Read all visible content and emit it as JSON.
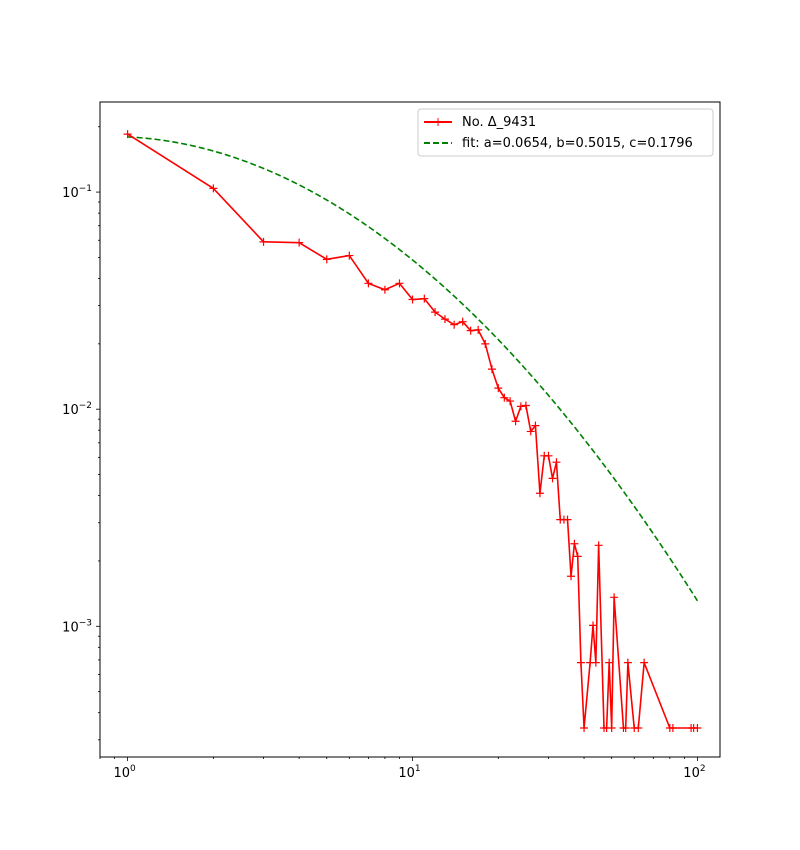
{
  "chart_data": {
    "type": "line",
    "xscale": "log",
    "yscale": "log",
    "xlim": [
      0.8,
      120
    ],
    "ylim": [
      0.00025,
      0.26
    ],
    "grid": false,
    "legend_position": "upper-right",
    "x_ticks": [
      {
        "value": 1,
        "base": "10",
        "exp": "0"
      },
      {
        "value": 10,
        "base": "10",
        "exp": "1"
      },
      {
        "value": 100,
        "base": "10",
        "exp": "2"
      }
    ],
    "y_ticks": [
      {
        "value": 0.001,
        "base": "10",
        "exp": "−3"
      },
      {
        "value": 0.01,
        "base": "10",
        "exp": "−2"
      },
      {
        "value": 0.1,
        "base": "10",
        "exp": "−1"
      }
    ],
    "series": [
      {
        "name": "No. Δ_9431",
        "color": "#ff0000",
        "style": "solid",
        "marker": "plus",
        "x": [
          1,
          2,
          3,
          4,
          5,
          6,
          7,
          8,
          9,
          10,
          11,
          12,
          13,
          14,
          15,
          16,
          17,
          18,
          19,
          20,
          21,
          22,
          23,
          24,
          25,
          26,
          27,
          28,
          29,
          30,
          31,
          32,
          33,
          34,
          35,
          36,
          37,
          38,
          39,
          40,
          42,
          43,
          44,
          45,
          47,
          48,
          49,
          50,
          51,
          55,
          56,
          57,
          60,
          62,
          65,
          80,
          82,
          95,
          97,
          100
        ],
        "y": [
          0.185,
          0.104,
          0.059,
          0.0585,
          0.049,
          0.051,
          0.038,
          0.0355,
          0.038,
          0.032,
          0.0323,
          0.028,
          0.026,
          0.0245,
          0.0253,
          0.023,
          0.0232,
          0.02,
          0.0153,
          0.0125,
          0.0113,
          0.0109,
          0.0088,
          0.0103,
          0.0104,
          0.0079,
          0.0084,
          0.0041,
          0.0061,
          0.0061,
          0.0048,
          0.0057,
          0.0031,
          0.0031,
          0.0031,
          0.0017,
          0.0024,
          0.0021,
          0.00068,
          0.00034,
          0.00068,
          0.00101,
          0.00068,
          0.00236,
          0.00034,
          0.00034,
          0.00068,
          0.00034,
          0.00136,
          0.00034,
          0.00034,
          0.00068,
          0.00034,
          0.00034,
          0.00068,
          0.00034,
          0.00034,
          0.00034,
          0.00034,
          0.00034
        ]
      },
      {
        "name": "fit: a=0.0654, b=0.5015, c=0.1796",
        "color": "#008000",
        "style": "dashed",
        "marker": "none",
        "function": "y = c * x^-(a + b*log10(x))",
        "params": {
          "a": 0.0654,
          "b": 0.5015,
          "c": 0.1796
        },
        "x_range": [
          1,
          100
        ]
      }
    ]
  }
}
